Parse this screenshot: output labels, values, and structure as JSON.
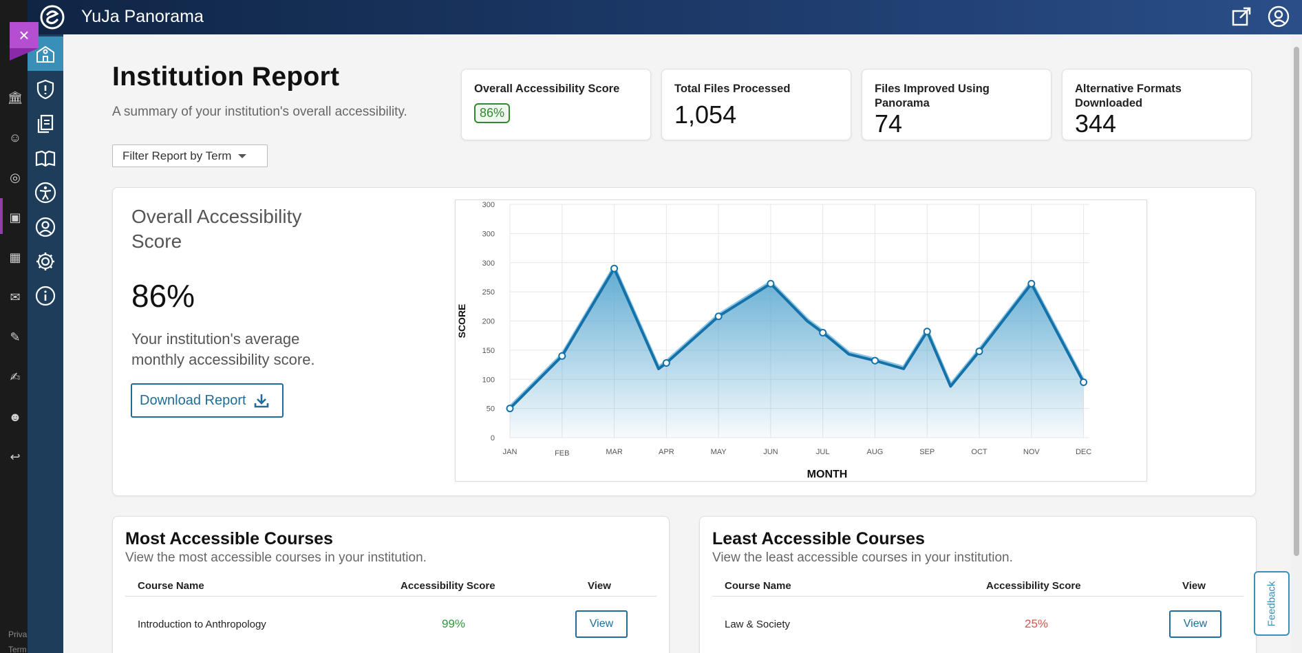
{
  "header": {
    "app_title": "YuJa Panorama"
  },
  "lms": {
    "footer_lines": [
      "Priva",
      "Term"
    ]
  },
  "page": {
    "title": "Institution Report",
    "subtitle": "A summary of your institution's overall accessibility.",
    "filter_label": "Filter Report by Term"
  },
  "stats": [
    {
      "label": "Overall Accessibility Score",
      "value": "86%"
    },
    {
      "label": "Total Files Processed",
      "value": "1,054"
    },
    {
      "label": "Files Improved Using Panorama",
      "value": "74"
    },
    {
      "label": "Alternative Formats Downloaded",
      "value": "344"
    }
  ],
  "score_panel": {
    "title": "Overall Accessibility Score",
    "value": "86%",
    "description": "Your institution's average monthly accessibility score.",
    "download_label": "Download Report"
  },
  "chart_data": {
    "type": "area",
    "xlabel": "MONTH",
    "ylabel": "SCORE",
    "y_tick_labels": [
      "0",
      "50",
      "100",
      "150",
      "200",
      "250",
      "300",
      "300",
      "300"
    ],
    "categories": [
      "JAN",
      "FEB",
      "MAR",
      "APR",
      "MAY",
      "JUN",
      "JUL",
      "AUG",
      "SEP",
      "OCT",
      "NOV",
      "DEC"
    ],
    "series": [
      {
        "x": [
          0,
          1,
          2,
          2.85,
          3,
          4,
          5,
          5.7,
          6,
          6.5,
          7,
          7.55,
          8,
          8.45,
          9,
          10,
          11
        ],
        "values": [
          50,
          140,
          290,
          118,
          128,
          208,
          264,
          200,
          180,
          143,
          132,
          118,
          182,
          88,
          148,
          264,
          95
        ],
        "markers": [
          true,
          true,
          true,
          false,
          true,
          true,
          true,
          false,
          true,
          false,
          true,
          false,
          true,
          false,
          true,
          true,
          true
        ]
      }
    ],
    "grid": true,
    "line_color": "#1572a8",
    "fill_color": "#5aa8d0"
  },
  "most_accessible": {
    "title": "Most Accessible Courses",
    "subtitle": "View the most accessible courses in your institution.",
    "col_course": "Course Name",
    "col_score": "Accessibility Score",
    "col_view": "View",
    "rows": [
      {
        "name": "Introduction to Anthropology",
        "score": "99%",
        "view": "View"
      }
    ],
    "score_color": "#2f9a3a"
  },
  "least_accessible": {
    "title": "Least Accessible Courses",
    "subtitle": "View the least accessible courses in your institution.",
    "col_course": "Course Name",
    "col_score": "Accessibility Score",
    "col_view": "View",
    "rows": [
      {
        "name": "Law & Society",
        "score": "25%",
        "view": "View"
      }
    ],
    "score_color": "#d9534f"
  },
  "feedback_label": "Feedback"
}
